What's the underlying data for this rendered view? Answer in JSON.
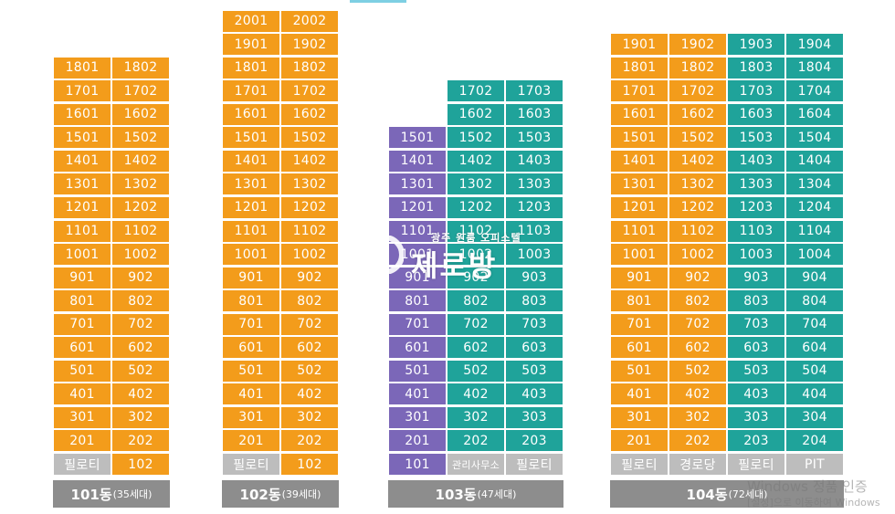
{
  "colors": {
    "orange": "#f39c1b",
    "teal": "#1fa39a",
    "purple": "#7b67b8",
    "grey": "#bdbdbd",
    "green": "#43a858",
    "label_bar": "#8d8d8d"
  },
  "buildings": [
    {
      "name": "101동",
      "count": "(35세대)",
      "columns": [
        {
          "units": [
            "1801",
            "1701",
            "1601",
            "1501",
            "1401",
            "1301",
            "1201",
            "1101",
            "1001",
            "901",
            "801",
            "701",
            "601",
            "501",
            "401",
            "301",
            "201"
          ],
          "ground": "필로티",
          "unit_color": "orange",
          "ground_color": "grey"
        },
        {
          "units": [
            "1802",
            "1702",
            "1602",
            "1502",
            "1402",
            "1302",
            "1202",
            "1102",
            "1002",
            "902",
            "802",
            "702",
            "602",
            "502",
            "402",
            "302",
            "202"
          ],
          "ground": "102",
          "unit_color": "orange",
          "ground_color": "orange"
        }
      ]
    },
    {
      "name": "102동",
      "count": "(39세대)",
      "columns": [
        {
          "units": [
            "2001",
            "1901",
            "1801",
            "1701",
            "1601",
            "1501",
            "1401",
            "1301",
            "1201",
            "1101",
            "1001",
            "901",
            "801",
            "701",
            "601",
            "501",
            "401",
            "301",
            "201"
          ],
          "ground": "필로티",
          "unit_color": "orange",
          "ground_color": "grey"
        },
        {
          "units": [
            "2002",
            "1902",
            "1802",
            "1702",
            "1602",
            "1502",
            "1402",
            "1302",
            "1202",
            "1102",
            "1002",
            "902",
            "802",
            "702",
            "602",
            "502",
            "402",
            "302",
            "202"
          ],
          "ground": "102",
          "unit_color": "orange",
          "ground_color": "orange"
        }
      ]
    },
    {
      "name": "103동",
      "count": "(47세대)",
      "columns": [
        {
          "units": [
            "1501",
            "1401",
            "1301",
            "1201",
            "1101",
            "1001",
            "901",
            "801",
            "701",
            "601",
            "501",
            "401",
            "301",
            "201"
          ],
          "ground": "101",
          "unit_color": "purple",
          "ground_color": "purple"
        },
        {
          "units": [
            "1702",
            "1602",
            "1502",
            "1402",
            "1302",
            "1202",
            "1102",
            "1002",
            "902",
            "802",
            "702",
            "602",
            "502",
            "402",
            "302",
            "202"
          ],
          "ground": "관리사무소",
          "unit_color": "teal",
          "ground_color": "grey"
        },
        {
          "units": [
            "1703",
            "1603",
            "1503",
            "1403",
            "1303",
            "1203",
            "1103",
            "1003",
            "903",
            "803",
            "703",
            "603",
            "503",
            "403",
            "303",
            "203"
          ],
          "ground": "필로티",
          "unit_color": "teal",
          "ground_color": "grey"
        }
      ]
    },
    {
      "name": "104동",
      "count": "(72세대)",
      "columns": [
        {
          "units": [
            "1901",
            "1801",
            "1701",
            "1601",
            "1501",
            "1401",
            "1301",
            "1201",
            "1101",
            "1001",
            "901",
            "801",
            "701",
            "601",
            "501",
            "401",
            "301",
            "201"
          ],
          "ground": "필로티",
          "unit_color": "orange",
          "ground_color": "grey"
        },
        {
          "units": [
            "1902",
            "1802",
            "1702",
            "1602",
            "1502",
            "1402",
            "1302",
            "1202",
            "1102",
            "1002",
            "902",
            "802",
            "702",
            "602",
            "502",
            "402",
            "302",
            "202"
          ],
          "ground": "경로당",
          "unit_color": "orange",
          "ground_color": "grey"
        },
        {
          "units": [
            "1903",
            "1803",
            "1703",
            "1603",
            "1503",
            "1403",
            "1303",
            "1203",
            "1103",
            "1003",
            "903",
            "803",
            "703",
            "603",
            "503",
            "403",
            "303",
            "203"
          ],
          "ground": "필로티",
          "unit_color": "teal",
          "ground_color": "grey"
        },
        {
          "units": [
            "1904",
            "1804",
            "1704",
            "1604",
            "1504",
            "1404",
            "1304",
            "1204",
            "1104",
            "1004",
            "904",
            "804",
            "704",
            "604",
            "504",
            "404",
            "304",
            "204"
          ],
          "ground": "PIT",
          "unit_color": "teal",
          "ground_color": "grey"
        }
      ]
    }
  ],
  "watermark": {
    "subtitle": "광주 원룸 오피스텔",
    "title": "제로방"
  },
  "windows_activation": {
    "title": "Windows 정품 인증",
    "subtitle": "[설정]으로 이동하여 Windows"
  }
}
